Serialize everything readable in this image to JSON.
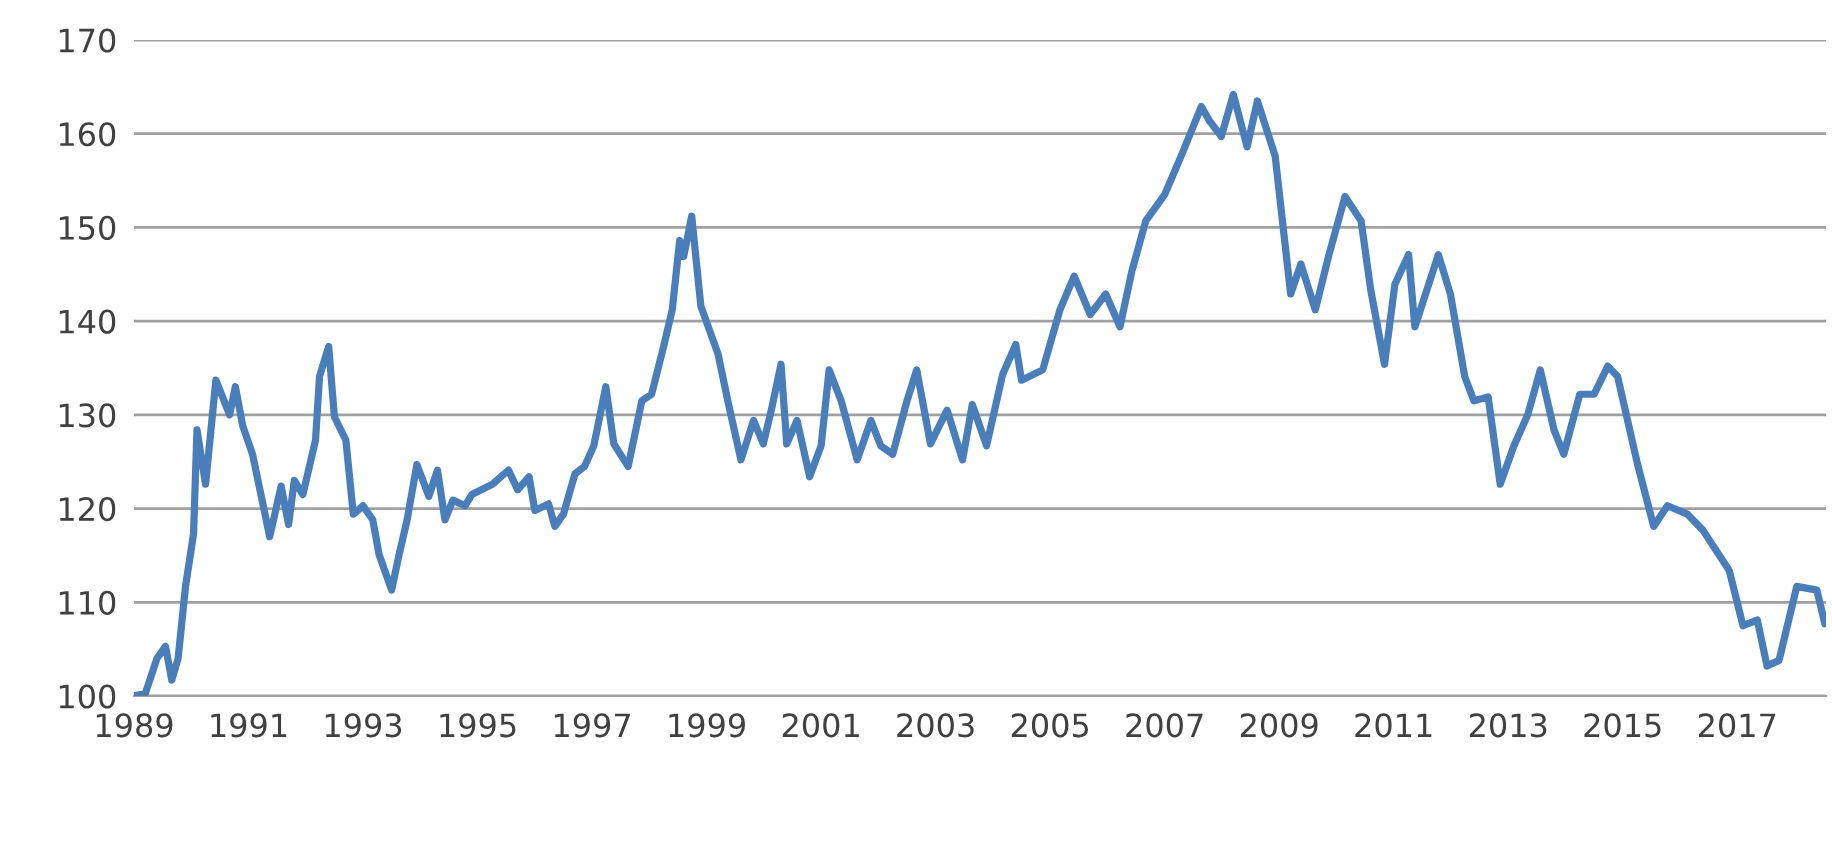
{
  "chart_data": {
    "type": "line",
    "xlim": [
      1989,
      2018.55
    ],
    "xticks": [
      1989,
      1991,
      1993,
      1995,
      1997,
      1999,
      2001,
      2003,
      2005,
      2007,
      2009,
      2011,
      2013,
      2015,
      2017
    ],
    "ylim": [
      100,
      170
    ],
    "yticks": [
      100,
      110,
      120,
      130,
      140,
      150,
      160,
      170
    ],
    "grid": "y",
    "series": [
      {
        "color": "#4a7ebb",
        "x": [
          1989.0,
          1989.2,
          1989.4,
          1989.55,
          1989.66,
          1989.77,
          1989.9,
          1990.04,
          1990.1,
          1990.25,
          1990.43,
          1990.67,
          1990.77,
          1990.9,
          1991.07,
          1991.37,
          1991.57,
          1991.7,
          1991.8,
          1991.95,
          1992.17,
          1992.24,
          1992.4,
          1992.5,
          1992.7,
          1992.83,
          1993.0,
          1993.17,
          1993.28,
          1993.5,
          1993.63,
          1993.77,
          1993.94,
          1994.15,
          1994.3,
          1994.43,
          1994.57,
          1994.78,
          1994.9,
          1995.26,
          1995.54,
          1995.7,
          1995.9,
          1996.0,
          1996.24,
          1996.35,
          1996.5,
          1996.7,
          1996.87,
          1997.03,
          1997.24,
          1997.38,
          1997.63,
          1997.87,
          1998.04,
          1998.25,
          1998.4,
          1998.53,
          1998.6,
          1998.74,
          1998.9,
          1999.2,
          1999.37,
          1999.6,
          1999.82,
          1999.99,
          2000.13,
          2000.3,
          2000.4,
          2000.58,
          2000.8,
          2001.0,
          2001.14,
          2001.35,
          2001.63,
          2001.87,
          2002.04,
          2002.25,
          2002.5,
          2002.67,
          2002.91,
          2003.2,
          2003.47,
          2003.64,
          2003.89,
          2004.17,
          2004.4,
          2004.5,
          2004.87,
          2005.17,
          2005.42,
          2005.7,
          2005.97,
          2006.22,
          2006.43,
          2006.67,
          2007.0,
          2007.3,
          2007.64,
          2007.78,
          2007.99,
          2008.2,
          2008.44,
          2008.62,
          2008.93,
          2009.2,
          2009.38,
          2009.63,
          2009.87,
          2010.15,
          2010.43,
          2010.6,
          2010.84,
          2011.02,
          2011.26,
          2011.37,
          2011.54,
          2011.78,
          2011.99,
          2012.24,
          2012.4,
          2012.65,
          2012.86,
          2013.1,
          2013.34,
          2013.56,
          2013.8,
          2013.97,
          2014.25,
          2014.5,
          2014.74,
          2014.91,
          2015.26,
          2015.54,
          2015.78,
          2016.13,
          2016.4,
          2016.86,
          2017.1,
          2017.35,
          2017.52,
          2017.73,
          2018.04,
          2018.39,
          2018.53
        ],
        "values": [
          100,
          100.3,
          104,
          105.3,
          101.7,
          104,
          111.7,
          117.3,
          128.4,
          122.6,
          133.7,
          130,
          133,
          128.8,
          125.8,
          117,
          122.4,
          118.3,
          123,
          121.5,
          127.3,
          134.1,
          137.3,
          129.8,
          127.3,
          119.4,
          120.3,
          118.8,
          115.1,
          111.3,
          115.1,
          118.8,
          124.7,
          121.3,
          124.1,
          118.8,
          120.9,
          120.3,
          121.5,
          122.6,
          124.1,
          122,
          123.4,
          119.8,
          120.5,
          118.1,
          119.4,
          123.7,
          124.5,
          126.7,
          133,
          126.9,
          124.5,
          131.5,
          132.2,
          137.3,
          141.2,
          148.6,
          146.9,
          151.2,
          141.6,
          136.5,
          131.5,
          125.2,
          129.4,
          126.9,
          130.5,
          135.4,
          126.9,
          129.4,
          123.4,
          126.7,
          134.8,
          131.5,
          125.2,
          129.4,
          126.7,
          125.8,
          131.5,
          134.8,
          126.9,
          130.5,
          125.2,
          131.1,
          126.7,
          134.3,
          137.5,
          133.7,
          134.8,
          141.2,
          144.8,
          140.7,
          142.9,
          139.4,
          145.4,
          150.7,
          153.5,
          157.8,
          162.9,
          161.4,
          159.7,
          164.2,
          158.6,
          163.5,
          157.6,
          142.9,
          146.1,
          141.2,
          147.1,
          153.3,
          150.7,
          143.3,
          135.4,
          143.9,
          147.1,
          139.4,
          142.6,
          147.1,
          142.9,
          134.1,
          131.5,
          131.9,
          122.6,
          126.7,
          130,
          134.8,
          128.4,
          125.8,
          132.2,
          132.2,
          135.2,
          134.1,
          124.7,
          118.1,
          120.3,
          119.4,
          117.7,
          113.4,
          107.5,
          108.1,
          103.2,
          103.8,
          111.7,
          111.3,
          107.7
        ]
      }
    ]
  }
}
